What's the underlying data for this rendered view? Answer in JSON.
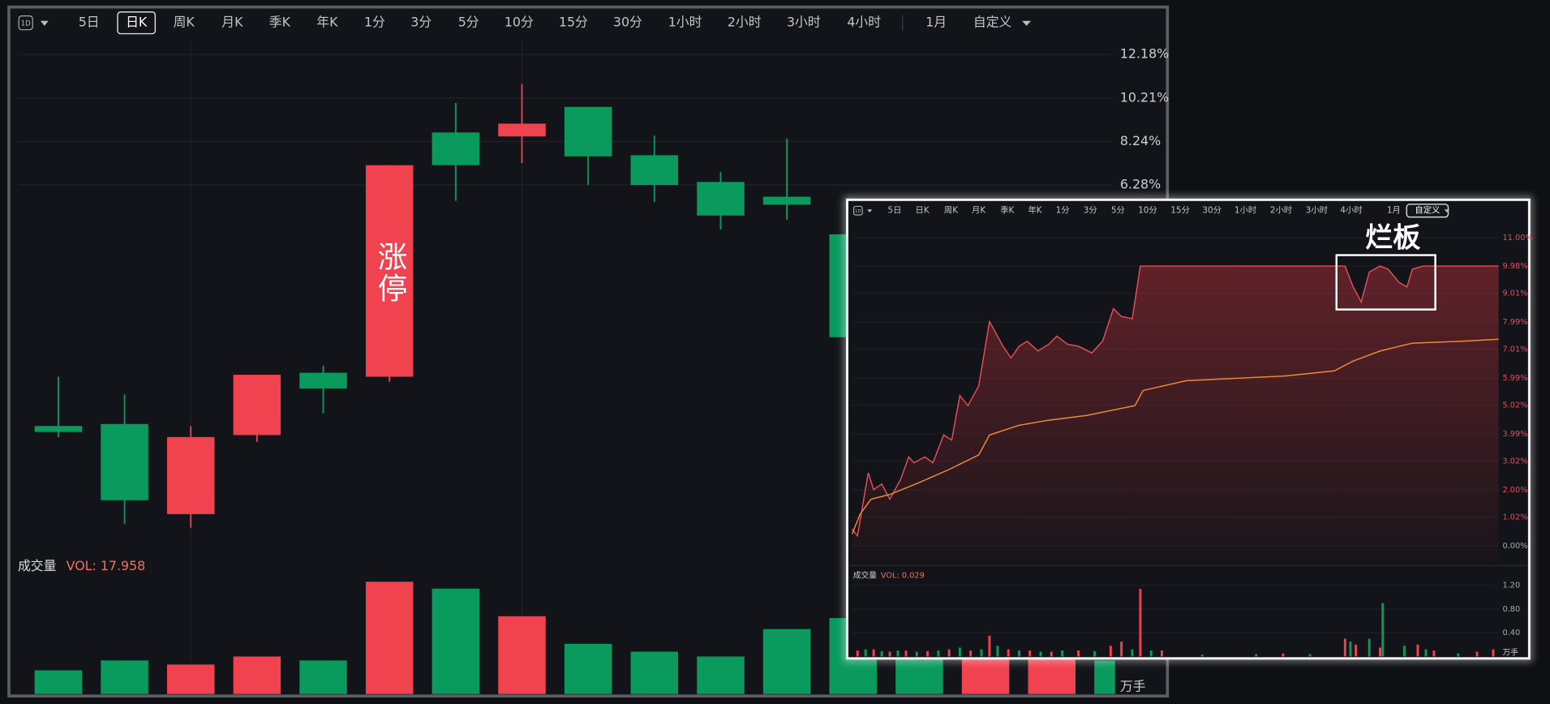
{
  "toolbars": [
    [
      "1D",
      "5日",
      "日K",
      "周K",
      "月K",
      "季K",
      "年K",
      "1分",
      "3分",
      "5分",
      "10分",
      "15分",
      "30分",
      "1小时",
      "2小时",
      "3小时",
      "4小时",
      "1月",
      "自定义"
    ],
    [
      "1D",
      "5日",
      "日K",
      "周K",
      "月K",
      "季K",
      "年K",
      "1分",
      "3分",
      "5分",
      "10分",
      "15分",
      "30分",
      "1小时",
      "2小时",
      "3小时",
      "4小时",
      "1月",
      "自定义"
    ]
  ],
  "chart_data": [
    {
      "type": "candlestick",
      "categories": [
        null,
        null,
        null,
        null,
        null,
        null,
        null,
        null,
        null,
        null,
        null,
        null,
        null,
        null,
        null,
        null,
        null
      ],
      "open": [
        -4.64,
        -4.55,
        -8.63,
        -5.05,
        -2.23,
        -2.41,
        8.65,
        8.47,
        9.81,
        7.62,
        6.41,
        5.74,
        4.04,
        null,
        null,
        null,
        null
      ],
      "high": [
        -2.41,
        -3.21,
        -4.64,
        -2.32,
        -1.91,
        7.17,
        9.99,
        10.84,
        9.81,
        8.51,
        6.86,
        8.38,
        4.04,
        null,
        null,
        null,
        null
      ],
      "low": [
        -5.14,
        -9.07,
        -9.25,
        -5.36,
        -4.06,
        -2.63,
        5.56,
        7.26,
        6.27,
        5.51,
        4.26,
        4.71,
        -0.62,
        null,
        null,
        null,
        null
      ],
      "close": [
        -4.91,
        -8.0,
        -5.14,
        -2.32,
        -2.94,
        7.17,
        7.17,
        9.05,
        7.57,
        6.27,
        4.89,
        5.38,
        -0.62,
        null,
        null,
        null,
        null
      ],
      "up_color": "#f0424f",
      "down_color": "#0b9a5e",
      "ylim": [
        -10.33,
        12.63
      ],
      "yticks": [
        {
          "value": 12.18,
          "label": "12.18%"
        },
        {
          "value": 10.21,
          "label": "10.21%"
        },
        {
          "value": 8.24,
          "label": "8.24%"
        },
        {
          "value": 6.28,
          "label": "6.28%"
        }
      ],
      "grid": true,
      "annotation": "涨停",
      "volume": {
        "label": "成交量",
        "vol_label": "VOL: 17.958",
        "unit": "万手",
        "values": [
          12.7,
          18.0,
          15.8,
          20.1,
          18.0,
          60.2,
          56.5,
          41.7,
          26.9,
          22.7,
          20.1,
          34.8,
          40.7,
          21.0,
          21.0,
          21.0,
          17.958
        ],
        "colors": [
          "#0b9a5e",
          "#0b9a5e",
          "#f0424f",
          "#f0424f",
          "#0b9a5e",
          "#f0424f",
          "#0b9a5e",
          "#f0424f",
          "#0b9a5e",
          "#0b9a5e",
          "#0b9a5e",
          "#0b9a5e",
          "#0b9a5e",
          "#0b9a5e",
          "#f0424f",
          "#f0424f",
          "#0b9a5e"
        ],
        "ylim": [
          0,
          62
        ]
      }
    },
    {
      "type": "line",
      "xlim": [
        0,
        240
      ],
      "ylim": [
        -0.6,
        11.5
      ],
      "yticks": [
        {
          "value": 11.0,
          "label": "11.00%"
        },
        {
          "value": 9.98,
          "label": "9.98%"
        },
        {
          "value": 9.01,
          "label": "9.01%"
        },
        {
          "value": 7.99,
          "label": "7.99%"
        },
        {
          "value": 7.01,
          "label": "7.01%"
        },
        {
          "value": 5.99,
          "label": "5.99%"
        },
        {
          "value": 5.02,
          "label": "5.02%"
        },
        {
          "value": 3.99,
          "label": "3.99%"
        },
        {
          "value": 3.02,
          "label": "3.02%"
        },
        {
          "value": 2.0,
          "label": "2.00%"
        },
        {
          "value": 1.02,
          "label": "1.02%"
        },
        {
          "value": 0,
          "label": "0.00%"
        }
      ],
      "grid": true,
      "series": [
        {
          "color": "#e0505a",
          "x": [
            0,
            2,
            6,
            8,
            11,
            14,
            18,
            21,
            23,
            27,
            30,
            34,
            37,
            40,
            43,
            47,
            51,
            52,
            56,
            59,
            62,
            65,
            69,
            73,
            76,
            80,
            84,
            89,
            93,
            97,
            100,
            104,
            107,
            181,
            183,
            186,
            189,
            192,
            196,
            199,
            203,
            206,
            208,
            212,
            217,
            240
          ],
          "values": [
            0.6,
            0.35,
            2.6,
            2.0,
            2.2,
            1.66,
            2.36,
            3.17,
            2.96,
            3.17,
            2.96,
            3.95,
            3.77,
            5.36,
            5.0,
            5.7,
            8.0,
            7.83,
            7.12,
            6.7,
            7.12,
            7.3,
            6.95,
            7.19,
            7.48,
            7.19,
            7.12,
            6.88,
            7.3,
            8.46,
            8.18,
            8.1,
            9.98,
            9.98,
            9.98,
            9.24,
            8.7,
            9.77,
            9.98,
            9.87,
            9.4,
            9.24,
            9.87,
            9.98,
            9.98,
            9.98
          ]
        },
        {
          "color": "#f08a30",
          "x": [
            0,
            3,
            7,
            14,
            25,
            36,
            47,
            51,
            62,
            73,
            87,
            105,
            108,
            124,
            161,
            179,
            186,
            196,
            208,
            227,
            240
          ],
          "values": [
            0.42,
            1.13,
            1.66,
            1.83,
            2.26,
            2.72,
            3.24,
            3.95,
            4.3,
            4.48,
            4.65,
            5.0,
            5.54,
            5.89,
            6.06,
            6.24,
            6.59,
            6.95,
            7.23,
            7.3,
            7.37
          ]
        }
      ],
      "annotation": "烂板",
      "volume": {
        "label": "成交量",
        "vol_label": "VOL: 0.029",
        "unit": "万手",
        "ylim": [
          0,
          1.3
        ],
        "yticks": [
          {
            "value": 1.2,
            "label": "1.20"
          },
          {
            "value": 0.8,
            "label": "0.80"
          },
          {
            "value": 0.4,
            "label": "0.40"
          }
        ],
        "series": [
          {
            "color": "#f0424f",
            "x": [
              2,
              8,
              14,
              20,
              28,
              36,
              44,
              51,
              58,
              66,
              74,
              84,
              96,
              100,
              107,
              115,
              160,
              183,
              187,
              196,
              210,
              216,
              232,
              238
            ],
            "values": [
              0.1,
              0.12,
              0.08,
              0.1,
              0.09,
              0.12,
              0.1,
              0.35,
              0.12,
              0.1,
              0.08,
              0.1,
              0.18,
              0.25,
              1.14,
              0.1,
              0.05,
              0.3,
              0.2,
              0.15,
              0.2,
              0.1,
              0.08,
              0.12
            ]
          },
          {
            "color": "#0b9a5e",
            "x": [
              5,
              11,
              17,
              24,
              32,
              40,
              48,
              54,
              62,
              70,
              78,
              90,
              104,
              111,
              130,
              150,
              170,
              185,
              192,
              197,
              205,
              213,
              225
            ],
            "values": [
              0.12,
              0.09,
              0.1,
              0.08,
              0.1,
              0.15,
              0.12,
              0.18,
              0.1,
              0.08,
              0.1,
              0.09,
              0.12,
              0.1,
              0.03,
              0.04,
              0.04,
              0.25,
              0.3,
              0.9,
              0.18,
              0.12,
              0.05
            ]
          }
        ]
      }
    }
  ]
}
